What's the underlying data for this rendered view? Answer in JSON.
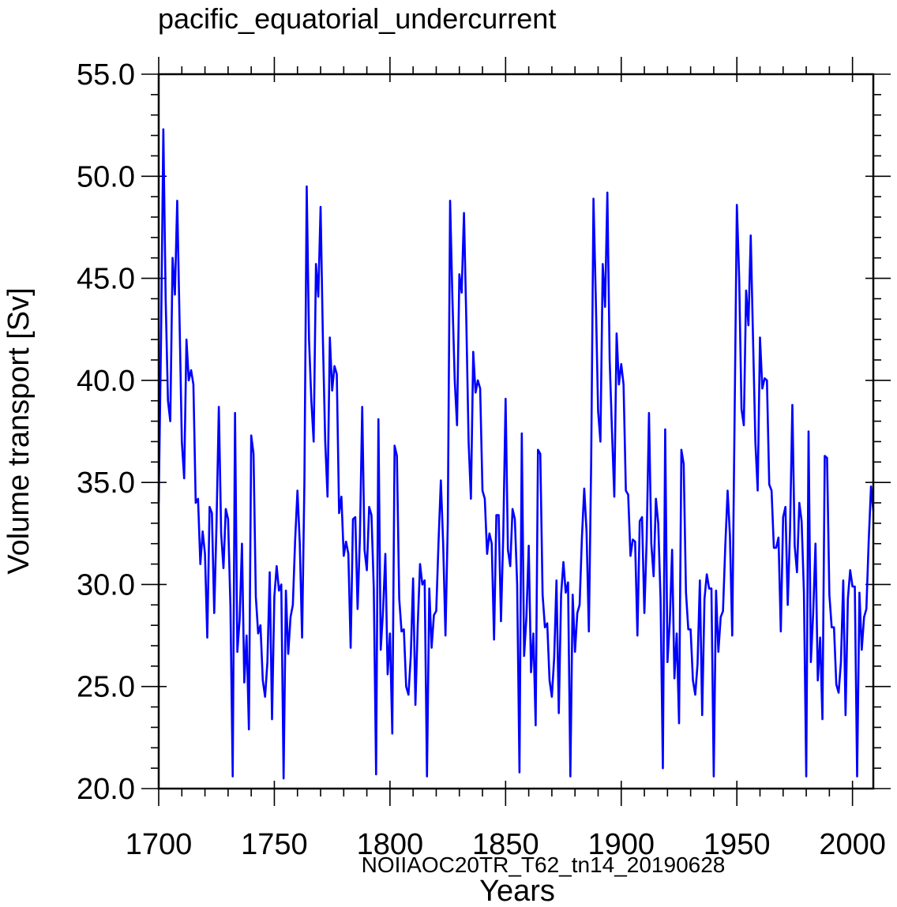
{
  "chart_data": {
    "type": "line",
    "title": "pacific_equatorial_undercurrent",
    "xlabel": "Years",
    "ylabel": "Volume transport [Sv]",
    "annotation": "NOIIAOC20TR_T62_tn14_20190628",
    "xlim": [
      1700,
      2009
    ],
    "ylim": [
      20,
      55
    ],
    "x_ticks": [
      1700,
      1750,
      1800,
      1850,
      1900,
      1950,
      2000
    ],
    "x_tick_labels": [
      "1700",
      "1750",
      "1800",
      "1850",
      "1900",
      "1950",
      "2000"
    ],
    "y_ticks": [
      20,
      25,
      30,
      35,
      40,
      45,
      50,
      55
    ],
    "y_tick_labels": [
      "20.0",
      "25.0",
      "30.0",
      "35.0",
      "40.0",
      "45.0",
      "50.0",
      "55.0"
    ],
    "grid": false,
    "line_color": "#0000ff",
    "annotation_color": "#0000ff",
    "cycle_length_years": 62,
    "cycles": 5,
    "series": [
      {
        "x_start": 1700,
        "x_step": 1,
        "values": [
          34.0,
          42.0,
          52.3,
          44.0,
          39.0,
          38.0,
          46.0,
          44.2,
          48.8,
          43.0,
          37.0,
          35.2,
          42.0,
          40.0,
          40.5,
          39.8,
          34.0,
          34.2,
          31.0,
          32.6,
          31.5,
          27.4,
          33.8,
          33.5,
          28.6,
          33.0,
          38.7,
          32.5,
          30.8,
          33.7,
          33.2,
          29.0,
          20.6,
          38.4,
          26.7,
          28.3,
          32.0,
          25.2,
          27.5,
          22.9,
          37.3,
          36.4,
          29.4,
          27.6,
          28.0,
          25.3,
          24.5,
          26.2,
          30.6,
          23.4,
          29.4,
          30.9,
          29.7,
          30.0,
          20.5,
          29.7,
          26.6,
          28.4,
          29.0,
          32.2,
          34.6,
          32.0,
          27.4,
          35.0,
          49.5,
          42.0,
          39.0,
          37.0,
          45.7,
          44.1,
          48.5,
          42.0,
          37.0,
          34.3,
          42.1,
          39.5,
          40.7,
          40.3,
          33.5,
          34.3,
          31.4,
          32.1,
          31.5,
          26.9,
          33.2,
          33.3,
          28.8,
          32.3,
          38.7,
          31.7,
          30.7,
          33.8,
          33.4,
          29.8,
          20.7,
          38.1,
          26.8,
          28.7,
          31.5,
          25.6,
          27.6,
          22.7,
          36.8,
          36.3,
          29.3,
          27.7,
          27.8,
          25.0,
          24.6,
          26.5,
          30.3,
          24.1,
          28.0,
          31.0,
          30.0,
          30.2,
          20.6,
          29.8,
          26.9,
          28.5,
          28.7,
          32.1,
          35.1,
          32.0,
          27.5,
          33.0,
          48.8,
          44.0,
          40.0,
          37.8,
          45.2,
          44.3,
          48.2,
          43.0,
          37.0,
          34.2,
          41.4,
          39.4,
          40.0,
          39.6,
          34.6,
          34.2,
          31.5,
          32.5,
          32.0,
          27.3,
          33.4,
          33.4,
          28.2,
          32.5,
          39.1,
          31.7,
          30.9,
          33.7,
          33.2,
          30.0,
          20.8,
          37.4,
          26.5,
          28.4,
          31.9,
          25.7,
          27.6,
          23.1,
          36.6,
          36.4,
          29.5,
          27.9,
          28.1,
          25.3,
          24.5,
          26.4,
          30.2,
          23.7,
          29.5,
          31.1,
          29.6,
          30.1,
          20.6,
          29.5,
          26.7,
          28.6,
          29.0,
          32.3,
          34.7,
          32.6,
          27.7,
          36.0,
          48.9,
          44.0,
          38.5,
          37.0,
          45.7,
          43.6,
          49.2,
          41.0,
          37.5,
          34.3,
          42.3,
          39.8,
          40.8,
          39.8,
          34.6,
          34.4,
          31.4,
          32.2,
          32.1,
          27.5,
          33.1,
          33.3,
          28.6,
          32.2,
          38.4,
          32.0,
          30.4,
          34.2,
          33.0,
          29.3,
          21.0,
          37.6,
          26.2,
          28.2,
          31.7,
          25.4,
          27.6,
          23.2,
          36.6,
          35.9,
          29.6,
          27.8,
          27.8,
          25.3,
          24.6,
          26.1,
          30.2,
          23.6,
          29.3,
          30.5,
          29.8,
          29.8,
          20.6,
          29.7,
          26.7,
          28.4,
          28.7,
          31.9,
          34.6,
          32.4,
          27.5,
          38.0,
          48.6,
          45.0,
          38.6,
          37.8,
          44.4,
          42.7,
          47.1,
          42.0,
          37.0,
          34.6,
          42.1,
          39.6,
          40.1,
          40.0,
          34.9,
          34.6,
          31.8,
          31.8,
          32.3,
          27.7,
          33.3,
          33.8,
          29.0,
          32.7,
          38.8,
          31.9,
          30.6,
          34.0,
          33.1,
          29.6,
          20.6,
          37.5,
          26.2,
          28.6,
          32.0,
          25.3,
          27.4,
          23.4,
          36.3,
          36.2,
          29.5,
          27.9,
          27.9,
          25.1,
          24.7,
          26.2,
          30.2,
          23.6,
          29.3,
          30.7,
          29.9,
          29.9,
          20.6,
          29.6,
          26.8,
          28.4,
          28.8,
          32.1,
          34.8,
          33.6
        ]
      }
    ]
  }
}
